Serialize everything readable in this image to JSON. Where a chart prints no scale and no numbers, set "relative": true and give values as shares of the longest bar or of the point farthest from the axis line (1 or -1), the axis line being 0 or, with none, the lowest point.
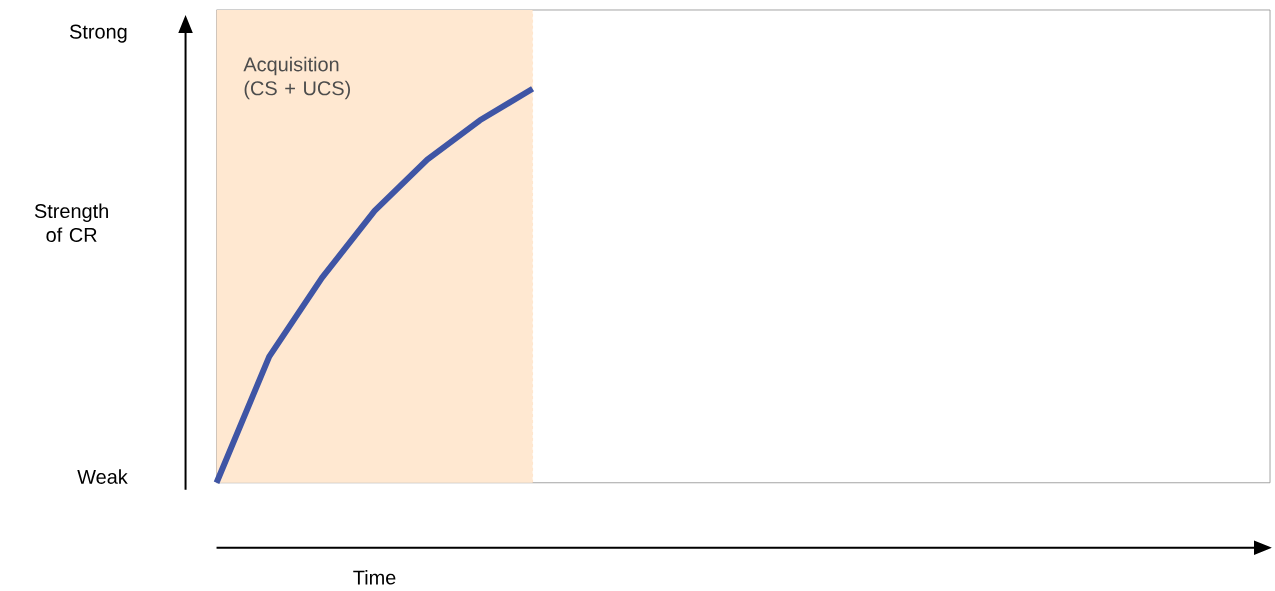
{
  "chart_data": {
    "type": "line",
    "xlabel": "Time",
    "categories": [
      null,
      null,
      null,
      null,
      null,
      null,
      null,
      null,
      null,
      null,
      null,
      null,
      null,
      null,
      null,
      null,
      null,
      null,
      null,
      null,
      null
    ],
    "values": [
      0,
      0.32,
      0.52,
      0.69,
      0.82,
      0.92,
      1,
      null,
      null,
      null,
      null,
      null,
      null,
      null,
      null,
      null,
      null,
      null,
      null,
      null,
      null
    ],
    "color": "#3f55a5",
    "relative": true,
    "annotations": [
      "Weak",
      "Strong",
      "Strength of CR",
      "Acquisition (CS + UCS)"
    ]
  }
}
